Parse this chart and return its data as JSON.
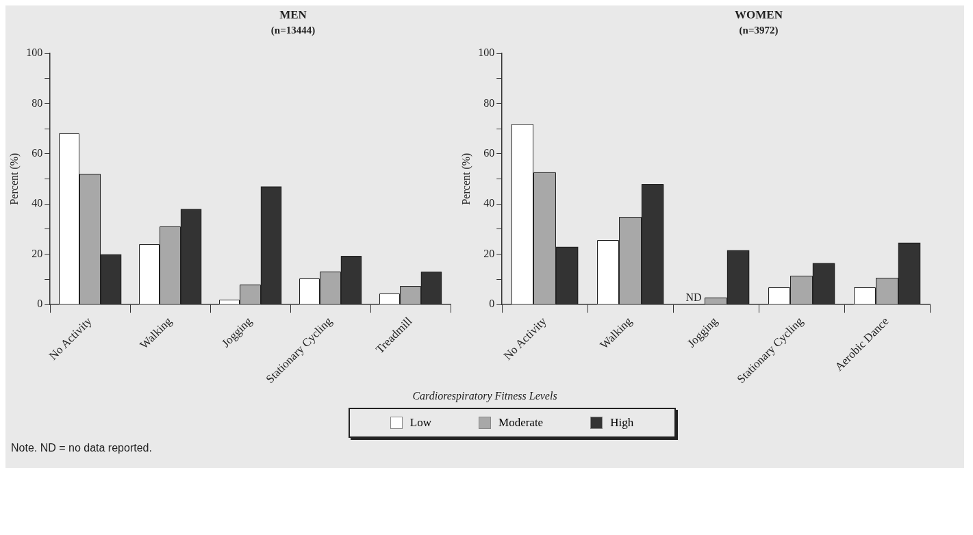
{
  "chart_data": [
    {
      "type": "bar",
      "title": "MEN",
      "subtitle": "(n=13444)",
      "ylabel": "Percent (%)",
      "xlabel": "Cardiorespiratory Fitness Levels",
      "categories": [
        "No Activity",
        "Walking",
        "Jogging",
        "Stationary Cycling",
        "Treadmill"
      ],
      "series": [
        {
          "name": "Low",
          "color": "#ffffff",
          "values": [
            68,
            24,
            2,
            10.4,
            4.3
          ]
        },
        {
          "name": "Moderate",
          "color": "#a8a8a8",
          "values": [
            52,
            31,
            8,
            13.2,
            7.3
          ]
        },
        {
          "name": "High",
          "color": "#333333",
          "values": [
            20,
            38,
            47,
            19.3,
            13
          ]
        }
      ],
      "ylim": [
        0,
        100
      ],
      "yticks": [
        0,
        {
          "value": 10,
          "label": null
        },
        20,
        {
          "value": 30,
          "label": null
        },
        40,
        {
          "value": 50,
          "label": null
        },
        60,
        {
          "value": 70,
          "label": null
        },
        80,
        {
          "value": 90,
          "label": null
        },
        100
      ],
      "grid": false,
      "legend": "bottom",
      "annotations": [
        "Note. ND = no data reported."
      ]
    },
    {
      "type": "bar",
      "title": "WOMEN",
      "subtitle": "(n=3972)",
      "ylabel": "Percent (%)",
      "categories": [
        "No Activity",
        "Walking",
        "Jogging",
        "Stationary Cycling",
        "Aerobic Dance"
      ],
      "series": [
        {
          "color": "#ffffff",
          "values": [
            72,
            25.7,
            null,
            6.8,
            6.8
          ]
        },
        {
          "color": "#a8a8a8",
          "values": [
            52.7,
            34.8,
            2.8,
            11.5,
            10.6
          ]
        },
        {
          "color": "#333333",
          "values": [
            23,
            47.9,
            21.6,
            16.5,
            24.6
          ]
        }
      ],
      "ylim": [
        0,
        100
      ],
      "yticks": [
        0,
        {
          "value": 10,
          "label": null
        },
        20,
        {
          "value": 30,
          "label": null
        },
        40,
        {
          "value": 50,
          "label": null
        },
        60,
        {
          "value": 70,
          "label": null
        },
        80,
        {
          "value": 90,
          "label": null
        },
        100
      ],
      "grid": false,
      "annotations": [
        {
          "text": "ND",
          "x": "Jogging",
          "y": 0
        }
      ]
    }
  ]
}
